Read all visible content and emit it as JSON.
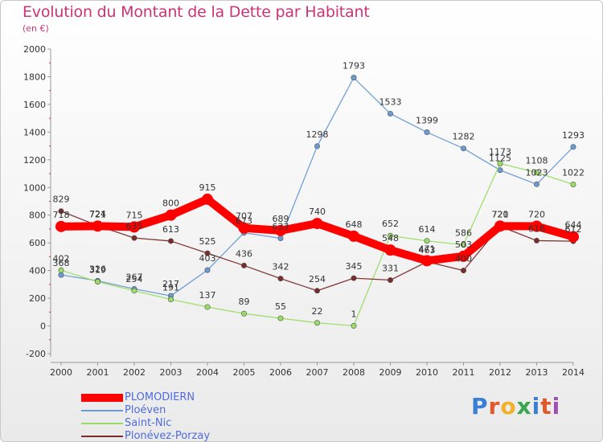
{
  "header": {
    "title": "Evolution du Montant de la Dette par Habitant",
    "subtitle": "(en €)"
  },
  "logo": {
    "text": "Proxiti"
  },
  "colors": {
    "title": "#cc3377",
    "legend_text": "#4f6cd9"
  },
  "chart_data": {
    "type": "line",
    "title": "Evolution du Montant de la Dette par Habitant",
    "subtitle": "(en €)",
    "xlabel": "",
    "ylabel": "",
    "ylim": [
      -200,
      2000
    ],
    "y_ticks": [
      -200,
      0,
      200,
      400,
      600,
      800,
      1000,
      1200,
      1400,
      1600,
      1800,
      2000
    ],
    "x": [
      "2000",
      "2001",
      "2002",
      "2003",
      "2004",
      "2005",
      "2006",
      "2007",
      "2008",
      "2009",
      "2010",
      "2011",
      "2012",
      "2013",
      "2014"
    ],
    "grid": false,
    "legend_position": "bottom-left",
    "series": [
      {
        "name": "PLOMODIERN",
        "color": "#ff0000",
        "values": [
          718,
          721,
          715,
          800,
          915,
          707,
          689,
          740,
          648,
          548,
          471,
          503,
          721,
          720,
          644
        ]
      },
      {
        "name": "Ploéven",
        "color": "#6a9bd1",
        "values": [
          368,
          326,
          267,
          217,
          403,
          673,
          633,
          1298,
          1793,
          1533,
          1399,
          1282,
          1125,
          1023,
          1293
        ]
      },
      {
        "name": "Saint-Nic",
        "color": "#99dd66",
        "values": [
          402,
          319,
          254,
          191,
          137,
          89,
          55,
          22,
          1,
          652,
          614,
          586,
          1173,
          1108,
          1022
        ]
      },
      {
        "name": "Plonévez-Porzay",
        "color": "#7a2b2b",
        "values": [
          829,
          724,
          635,
          613,
          525,
          436,
          342,
          254,
          345,
          331,
          463,
          400,
          720,
          616,
          612
        ]
      }
    ]
  }
}
